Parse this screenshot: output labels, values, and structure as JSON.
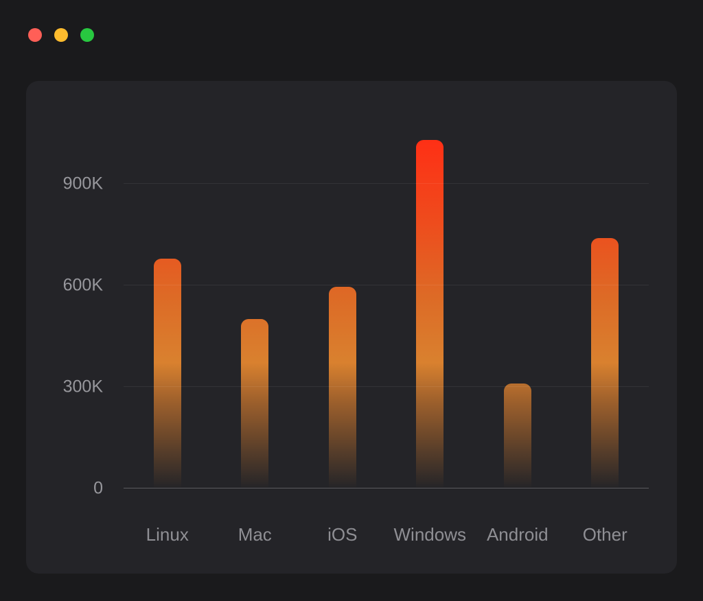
{
  "colors": {
    "page_bg": "#1a1a1c",
    "card_bg": "#242428",
    "tick_label": "#97979c",
    "category_label": "#8f8f94"
  },
  "window": {
    "traffic_lights": [
      {
        "name": "close",
        "color": "#ff5f57"
      },
      {
        "name": "minimize",
        "color": "#febc2e"
      },
      {
        "name": "zoom",
        "color": "#28c840"
      }
    ]
  },
  "chart_data": {
    "type": "bar",
    "title": "",
    "xlabel": "",
    "ylabel": "",
    "categories": [
      "Linux",
      "Mac",
      "iOS",
      "Windows",
      "Android",
      "Other"
    ],
    "values": [
      680000,
      500000,
      595000,
      1030000,
      310000,
      740000
    ],
    "ylim": [
      0,
      1050000
    ],
    "grid": true,
    "legend": false,
    "y_ticks": [
      {
        "label": "900K",
        "value": 900000
      },
      {
        "label": "600K",
        "value": 600000
      },
      {
        "label": "300K",
        "value": 300000
      },
      {
        "label": "0",
        "value": 0
      }
    ],
    "bar_gradient": [
      {
        "pos": "0%",
        "color": "rgba(190,110,45,0)"
      },
      {
        "pos": "10%",
        "color": "rgba(195,115,45,0.30)"
      },
      {
        "pos": "25%",
        "color": "rgba(210,122,46,0.70)"
      },
      {
        "pos": "36%",
        "color": "#d9812f"
      },
      {
        "pos": "55%",
        "color": "#dd6a26"
      },
      {
        "pos": "76%",
        "color": "#ee4c1d"
      },
      {
        "pos": "100%",
        "color": "#ff2f15"
      }
    ]
  }
}
